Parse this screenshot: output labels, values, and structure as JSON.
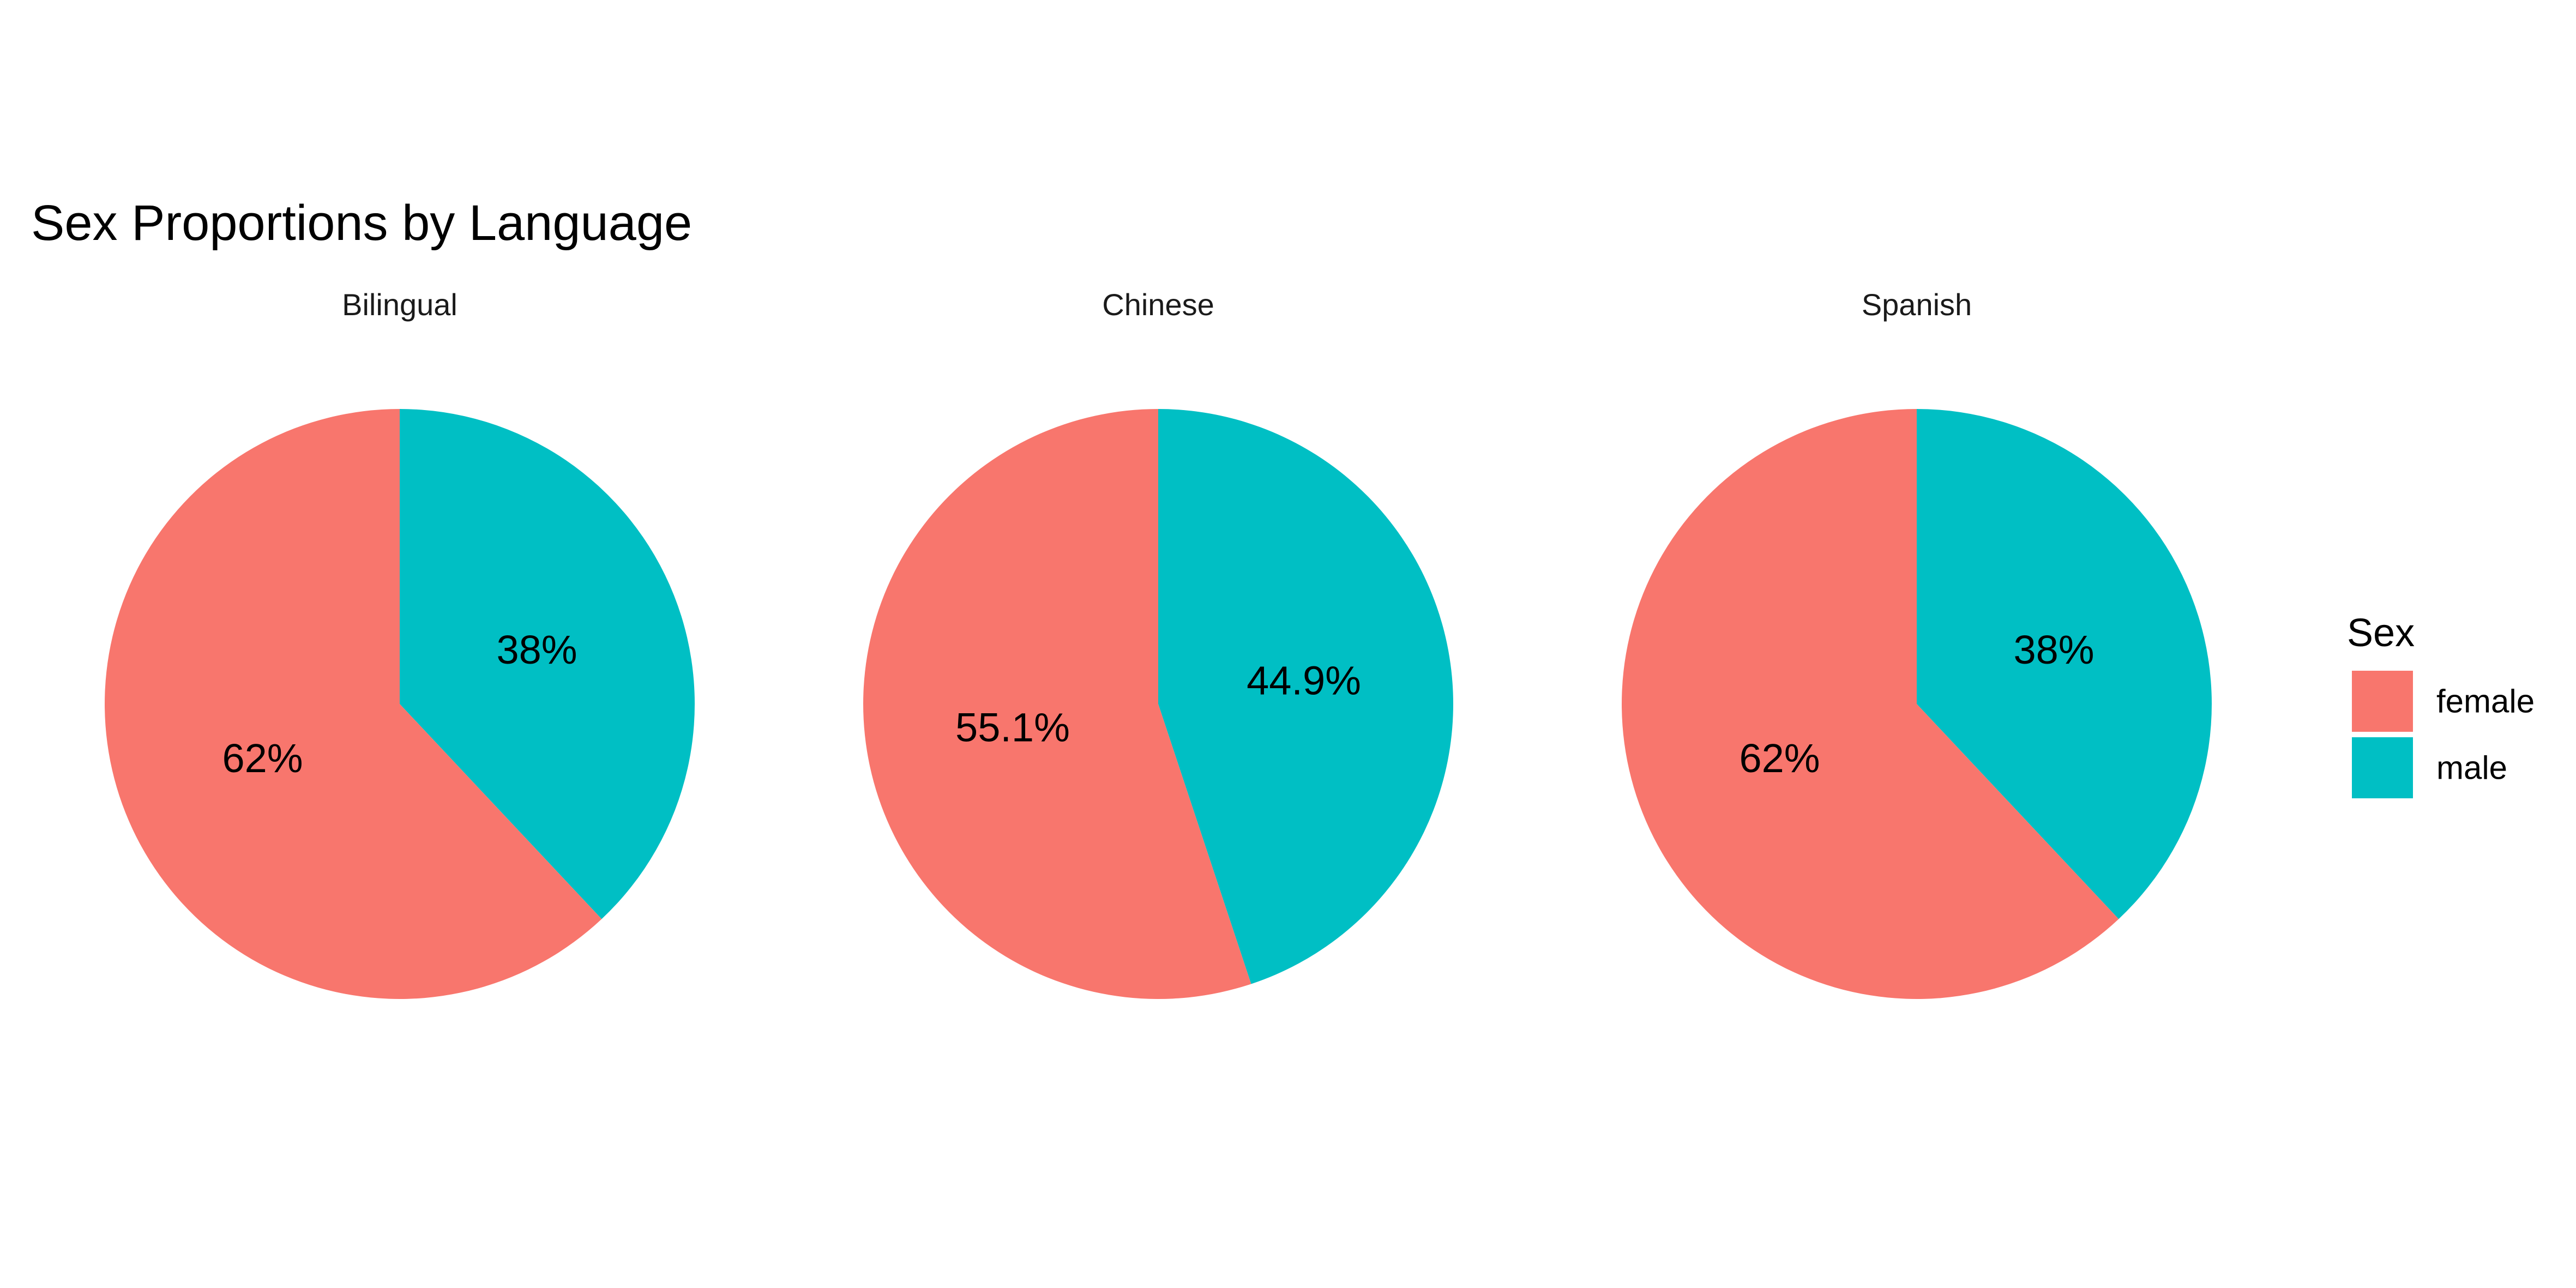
{
  "chart_data": {
    "type": "pie",
    "title": "Sex Proportions by Language",
    "legend": {
      "title": "Sex",
      "position": "right",
      "entries": [
        {
          "label": "female",
          "color": "#F8766D"
        },
        {
          "label": "male",
          "color": "#00BFC4"
        }
      ]
    },
    "facets": [
      {
        "name": "Bilingual",
        "slices": [
          {
            "category": "female",
            "value": 62,
            "label": "62%"
          },
          {
            "category": "male",
            "value": 38,
            "label": "38%"
          }
        ]
      },
      {
        "name": "Chinese",
        "slices": [
          {
            "category": "female",
            "value": 55.1,
            "label": "55.1%"
          },
          {
            "category": "male",
            "value": 44.9,
            "label": "44.9%"
          }
        ]
      },
      {
        "name": "Spanish",
        "slices": [
          {
            "category": "female",
            "value": 62,
            "label": "62%"
          },
          {
            "category": "male",
            "value": 38,
            "label": "38%"
          }
        ]
      }
    ]
  }
}
